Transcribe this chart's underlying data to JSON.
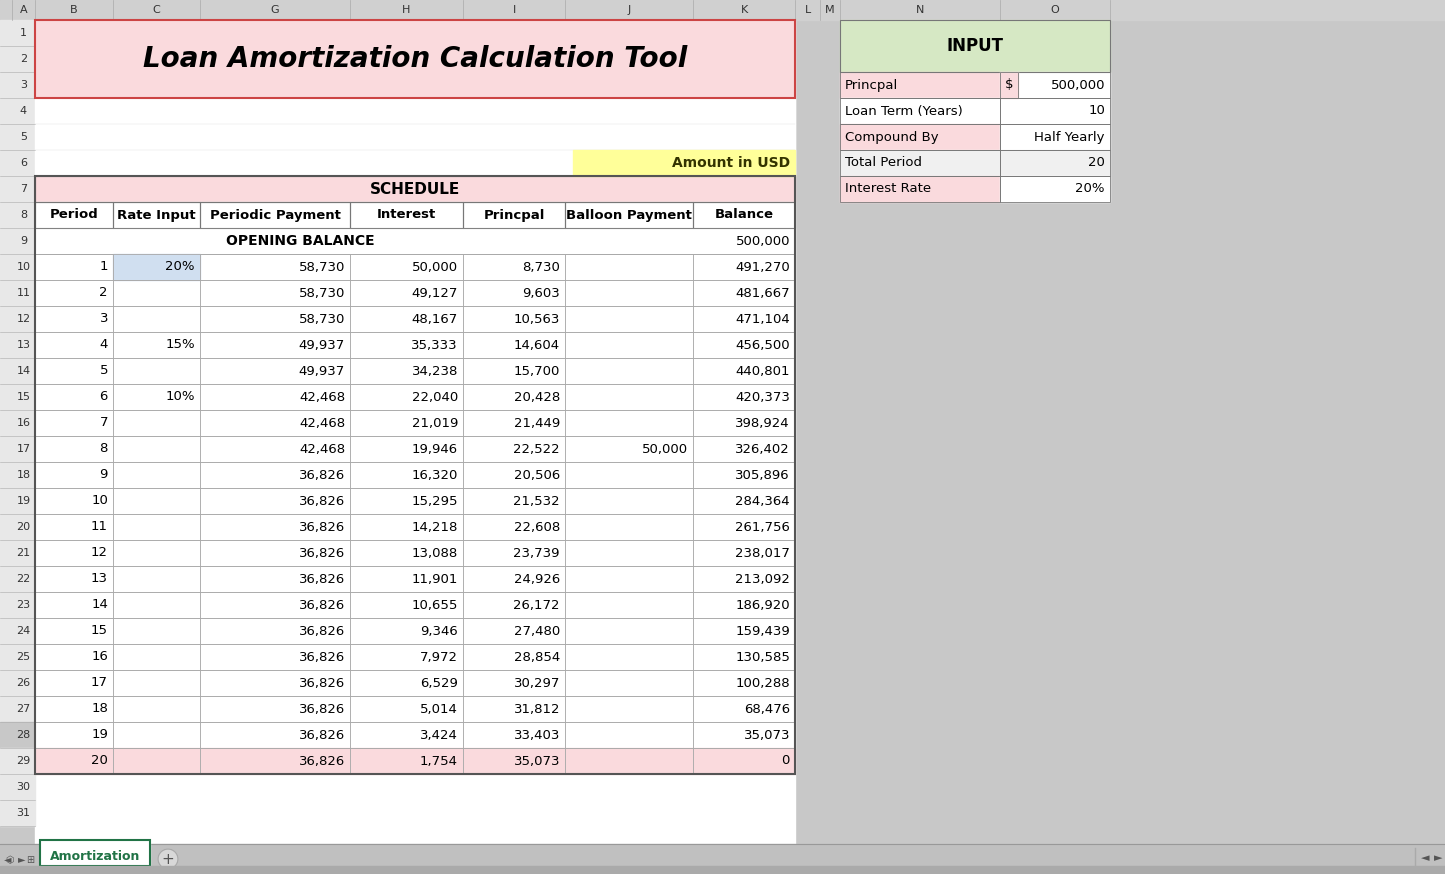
{
  "title": "Loan Amortization Calculation Tool",
  "title_bg": "#FADADD",
  "schedule_header": "SCHEDULE",
  "amount_in_usd_label": "Amount in USD",
  "col_headers": [
    "Period",
    "Rate Input",
    "Periodic Payment",
    "Interest",
    "Princpal",
    "Balloon Payment",
    "Balance"
  ],
  "opening_balance_label": "OPENING BALANCE",
  "opening_balance_value": "500,000",
  "rows": [
    [
      "1",
      "20%",
      "58,730",
      "50,000",
      "8,730",
      "",
      "491,270"
    ],
    [
      "2",
      "",
      "58,730",
      "49,127",
      "9,603",
      "",
      "481,667"
    ],
    [
      "3",
      "",
      "58,730",
      "48,167",
      "10,563",
      "",
      "471,104"
    ],
    [
      "4",
      "15%",
      "49,937",
      "35,333",
      "14,604",
      "",
      "456,500"
    ],
    [
      "5",
      "",
      "49,937",
      "34,238",
      "15,700",
      "",
      "440,801"
    ],
    [
      "6",
      "10%",
      "42,468",
      "22,040",
      "20,428",
      "",
      "420,373"
    ],
    [
      "7",
      "",
      "42,468",
      "21,019",
      "21,449",
      "",
      "398,924"
    ],
    [
      "8",
      "",
      "42,468",
      "19,946",
      "22,522",
      "50,000",
      "326,402"
    ],
    [
      "9",
      "",
      "36,826",
      "16,320",
      "20,506",
      "",
      "305,896"
    ],
    [
      "10",
      "",
      "36,826",
      "15,295",
      "21,532",
      "",
      "284,364"
    ],
    [
      "11",
      "",
      "36,826",
      "14,218",
      "22,608",
      "",
      "261,756"
    ],
    [
      "12",
      "",
      "36,826",
      "13,088",
      "23,739",
      "",
      "238,017"
    ],
    [
      "13",
      "",
      "36,826",
      "11,901",
      "24,926",
      "",
      "213,092"
    ],
    [
      "14",
      "",
      "36,826",
      "10,655",
      "26,172",
      "",
      "186,920"
    ],
    [
      "15",
      "",
      "36,826",
      "9,346",
      "27,480",
      "",
      "159,439"
    ],
    [
      "16",
      "",
      "36,826",
      "7,972",
      "28,854",
      "",
      "130,585"
    ],
    [
      "17",
      "",
      "36,826",
      "6,529",
      "30,297",
      "",
      "100,288"
    ],
    [
      "18",
      "",
      "36,826",
      "5,014",
      "31,812",
      "",
      "68,476"
    ],
    [
      "19",
      "",
      "36,826",
      "3,424",
      "33,403",
      "",
      "35,073"
    ],
    [
      "20",
      "",
      "36,826",
      "1,754",
      "35,073",
      "",
      "0"
    ]
  ],
  "highlighted_row": 19,
  "input_title": "INPUT",
  "input_title_bg": "#D6E8C4",
  "input_rows": [
    [
      "Princpal",
      "$",
      "500,000"
    ],
    [
      "Loan Term (Years)",
      "",
      "10"
    ],
    [
      "Compound By",
      "",
      "Half Yearly"
    ],
    [
      "Total Period",
      "",
      "20"
    ],
    [
      "Interest Rate",
      "",
      "20%"
    ]
  ],
  "tab_label": "Amortization",
  "tab_color": "#217346",
  "bg_color": "#C8C8C8",
  "grid_header_color": "#C8C8C8",
  "row_num_col_color": "#E8E8E8",
  "title_salmon": "#FADADD",
  "cell_border": "#AAAAAA",
  "input_label_bg_odd": "#FADADD",
  "input_label_bg_even": "#F0F0F0",
  "rate_input_highlight": "#D0DFF0"
}
